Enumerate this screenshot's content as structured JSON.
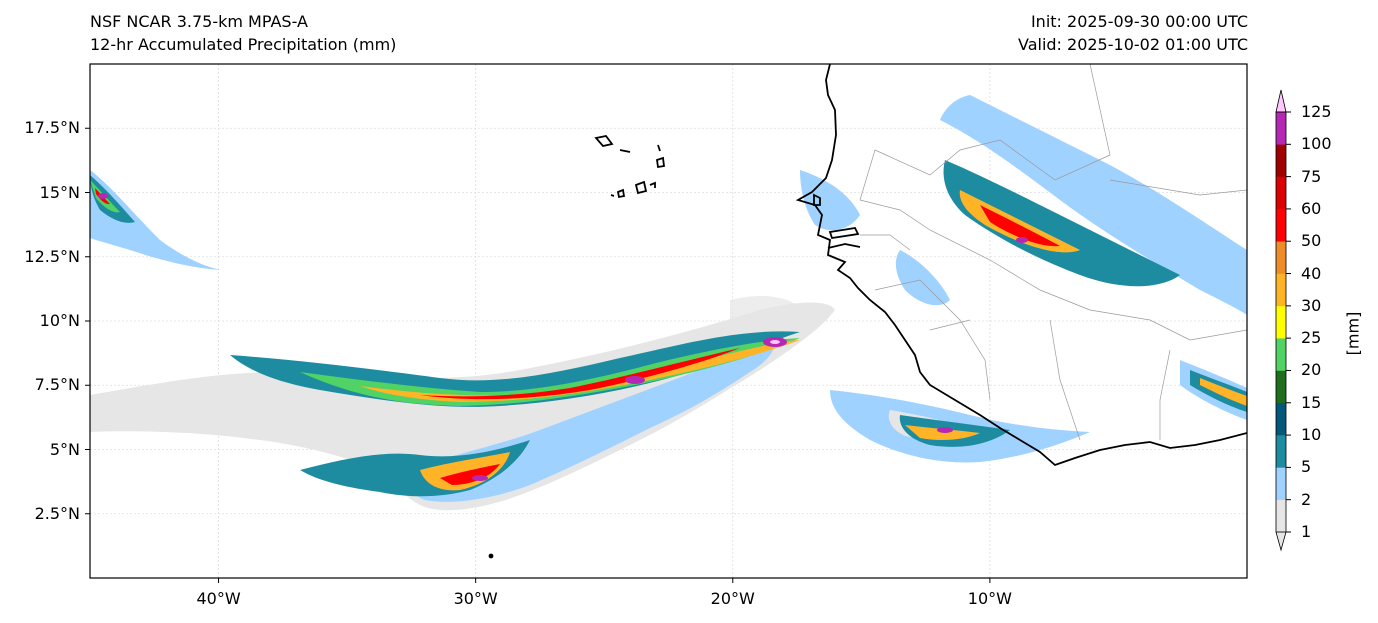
{
  "header": {
    "left_line1": "NSF NCAR 3.75-km MPAS-A",
    "left_line2": "12-hr Accumulated Precipitation (mm)",
    "right_line1": "Init: 2025-09-30 00:00 UTC",
    "right_line2": "Valid: 2025-10-02 01:00 UTC"
  },
  "map": {
    "lon_range": [
      -45,
      0
    ],
    "lat_range": [
      0,
      20
    ],
    "lat_ticks": [
      {
        "value": 17.5,
        "label": "17.5°N"
      },
      {
        "value": 15,
        "label": "15°N"
      },
      {
        "value": 12.5,
        "label": "12.5°N"
      },
      {
        "value": 10,
        "label": "10°N"
      },
      {
        "value": 7.5,
        "label": "7.5°N"
      },
      {
        "value": 5,
        "label": "5°N"
      },
      {
        "value": 2.5,
        "label": "2.5°N"
      }
    ],
    "lon_ticks": [
      {
        "value": -40,
        "label": "40°W"
      },
      {
        "value": -30,
        "label": "30°W"
      },
      {
        "value": -20,
        "label": "20°W"
      },
      {
        "value": -10,
        "label": "10°W"
      }
    ]
  },
  "colorbar": {
    "units": "[mm]",
    "levels": [
      "1",
      "2",
      "5",
      "10",
      "15",
      "20",
      "25",
      "30",
      "40",
      "50",
      "60",
      "75",
      "100",
      "125"
    ],
    "colors": [
      "#e6e6e6",
      "#a0d2ff",
      "#1e8ca0",
      "#00587a",
      "#1e6e1e",
      "#50d264",
      "#ffff00",
      "#ffb428",
      "#ee8c28",
      "#ff0000",
      "#dc0000",
      "#a00000",
      "#b428b4",
      "#ffc8ff"
    ]
  }
}
